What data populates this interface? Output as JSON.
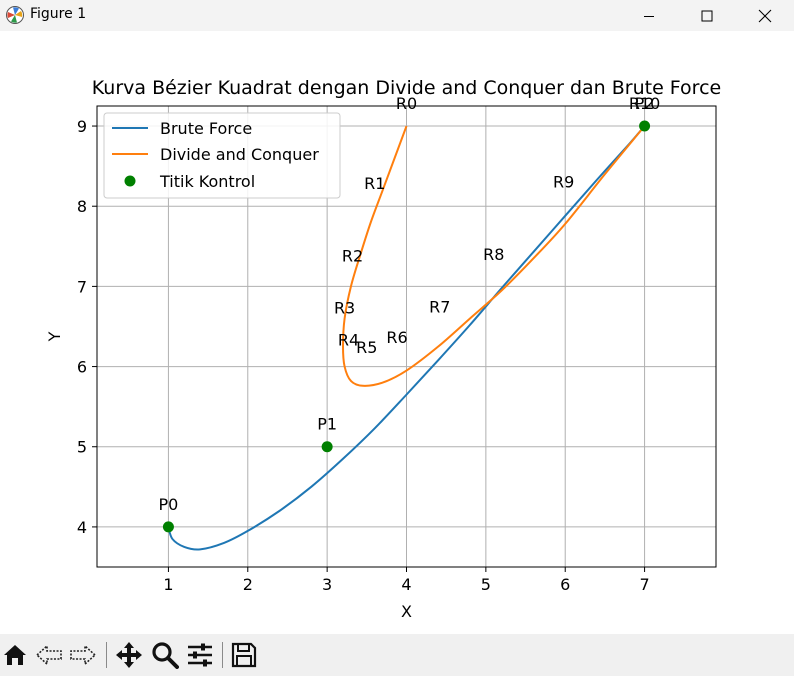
{
  "window": {
    "title": "Figure 1",
    "icons": [
      "matplotlib-icon",
      "minimize-icon",
      "maximize-icon",
      "close-icon"
    ]
  },
  "toolbar": {
    "buttons": [
      "home-icon",
      "back-icon",
      "forward-icon",
      "pan-icon",
      "zoom-icon",
      "configure-subplots-icon",
      "save-icon"
    ]
  },
  "chart_data": {
    "type": "line",
    "title": "Kurva Bézier Kuadrat dengan Divide and Conquer dan Brute Force",
    "xlabel": "X",
    "ylabel": "Y",
    "xlim": [
      0.1,
      7.9
    ],
    "ylim": [
      3.5,
      9.25
    ],
    "xticks": [
      1,
      2,
      3,
      4,
      5,
      6,
      7
    ],
    "yticks": [
      4,
      5,
      6,
      7,
      8,
      9
    ],
    "grid": true,
    "legend_position": "upper left",
    "series": [
      {
        "name": "Brute Force",
        "color": "#1f77b4",
        "points": [
          [
            1.0,
            4.0
          ],
          [
            1.05,
            3.85
          ],
          [
            1.2,
            3.75
          ],
          [
            1.4,
            3.72
          ],
          [
            1.7,
            3.8
          ],
          [
            2.0,
            3.95
          ],
          [
            2.4,
            4.2
          ],
          [
            2.8,
            4.5
          ],
          [
            3.2,
            4.85
          ],
          [
            3.6,
            5.23
          ],
          [
            4.0,
            5.65
          ],
          [
            4.4,
            6.08
          ],
          [
            4.8,
            6.52
          ],
          [
            5.2,
            6.98
          ],
          [
            5.6,
            7.43
          ],
          [
            6.0,
            7.88
          ],
          [
            6.4,
            8.33
          ],
          [
            6.8,
            8.77
          ],
          [
            7.0,
            9.0
          ]
        ]
      },
      {
        "name": "Divide and Conquer",
        "color": "#ff7f0e",
        "points": [
          [
            4.0,
            9.0
          ],
          [
            3.85,
            8.6
          ],
          [
            3.7,
            8.2
          ],
          [
            3.55,
            7.8
          ],
          [
            3.42,
            7.4
          ],
          [
            3.3,
            7.0
          ],
          [
            3.22,
            6.6
          ],
          [
            3.2,
            6.25
          ],
          [
            3.22,
            6.0
          ],
          [
            3.3,
            5.82
          ],
          [
            3.45,
            5.76
          ],
          [
            3.7,
            5.8
          ],
          [
            4.0,
            5.95
          ],
          [
            4.4,
            6.25
          ],
          [
            4.8,
            6.6
          ],
          [
            5.2,
            6.95
          ],
          [
            5.6,
            7.35
          ],
          [
            6.0,
            7.78
          ],
          [
            6.5,
            8.4
          ],
          [
            7.0,
            9.0
          ]
        ]
      }
    ],
    "control_points": {
      "name": "Titik Kontrol",
      "color": "#008000",
      "points": [
        [
          1,
          4
        ],
        [
          3,
          5
        ],
        [
          7,
          9
        ]
      ],
      "labels": [
        "P0",
        "P1",
        "P2"
      ]
    },
    "annotations": [
      {
        "text": "R0",
        "x": 4.0,
        "y": 9.0
      },
      {
        "text": "R1",
        "x": 3.6,
        "y": 8.0
      },
      {
        "text": "R2",
        "x": 3.32,
        "y": 7.1
      },
      {
        "text": "R3",
        "x": 3.22,
        "y": 6.45
      },
      {
        "text": "R4",
        "x": 3.27,
        "y": 6.05
      },
      {
        "text": "R5",
        "x": 3.5,
        "y": 5.96
      },
      {
        "text": "R6",
        "x": 3.88,
        "y": 6.08
      },
      {
        "text": "R7",
        "x": 4.42,
        "y": 6.46
      },
      {
        "text": "R8",
        "x": 5.1,
        "y": 7.12
      },
      {
        "text": "R9",
        "x": 5.98,
        "y": 8.02
      },
      {
        "text": "R10",
        "x": 7.0,
        "y": 9.0
      }
    ]
  }
}
